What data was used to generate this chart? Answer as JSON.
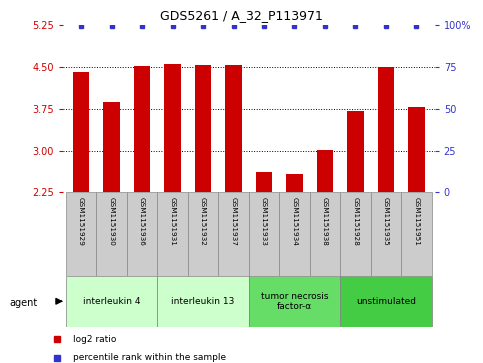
{
  "title": "GDS5261 / A_32_P113971",
  "samples": [
    "GSM1151929",
    "GSM1151930",
    "GSM1151936",
    "GSM1151931",
    "GSM1151932",
    "GSM1151937",
    "GSM1151933",
    "GSM1151934",
    "GSM1151938",
    "GSM1151928",
    "GSM1151935",
    "GSM1151951"
  ],
  "log2_values": [
    4.42,
    3.88,
    4.52,
    4.55,
    4.53,
    4.54,
    2.62,
    2.58,
    3.02,
    3.72,
    4.51,
    3.78
  ],
  "bar_color": "#cc0000",
  "dot_color": "#3333cc",
  "ylim_left": [
    2.25,
    5.25
  ],
  "yticks_left": [
    2.25,
    3.0,
    3.75,
    4.5,
    5.25
  ],
  "ylim_right": [
    0,
    100
  ],
  "yticks_right": [
    0,
    25,
    50,
    75,
    100
  ],
  "groups": [
    {
      "label": "interleukin 4",
      "start": 0,
      "end": 3,
      "color": "#ccffcc"
    },
    {
      "label": "interleukin 13",
      "start": 3,
      "end": 6,
      "color": "#ccffcc"
    },
    {
      "label": "tumor necrosis\nfactor-α",
      "start": 6,
      "end": 9,
      "color": "#66dd66"
    },
    {
      "label": "unstimulated",
      "start": 9,
      "end": 12,
      "color": "#44cc44"
    }
  ],
  "legend_items": [
    {
      "label": "log2 ratio",
      "color": "#cc0000"
    },
    {
      "label": "percentile rank within the sample",
      "color": "#3333cc"
    }
  ],
  "bar_width": 0.55,
  "left_tick_color": "#cc0000",
  "right_tick_color": "#3333cc",
  "sample_box_color": "#cccccc",
  "sample_box_edge": "#888888"
}
